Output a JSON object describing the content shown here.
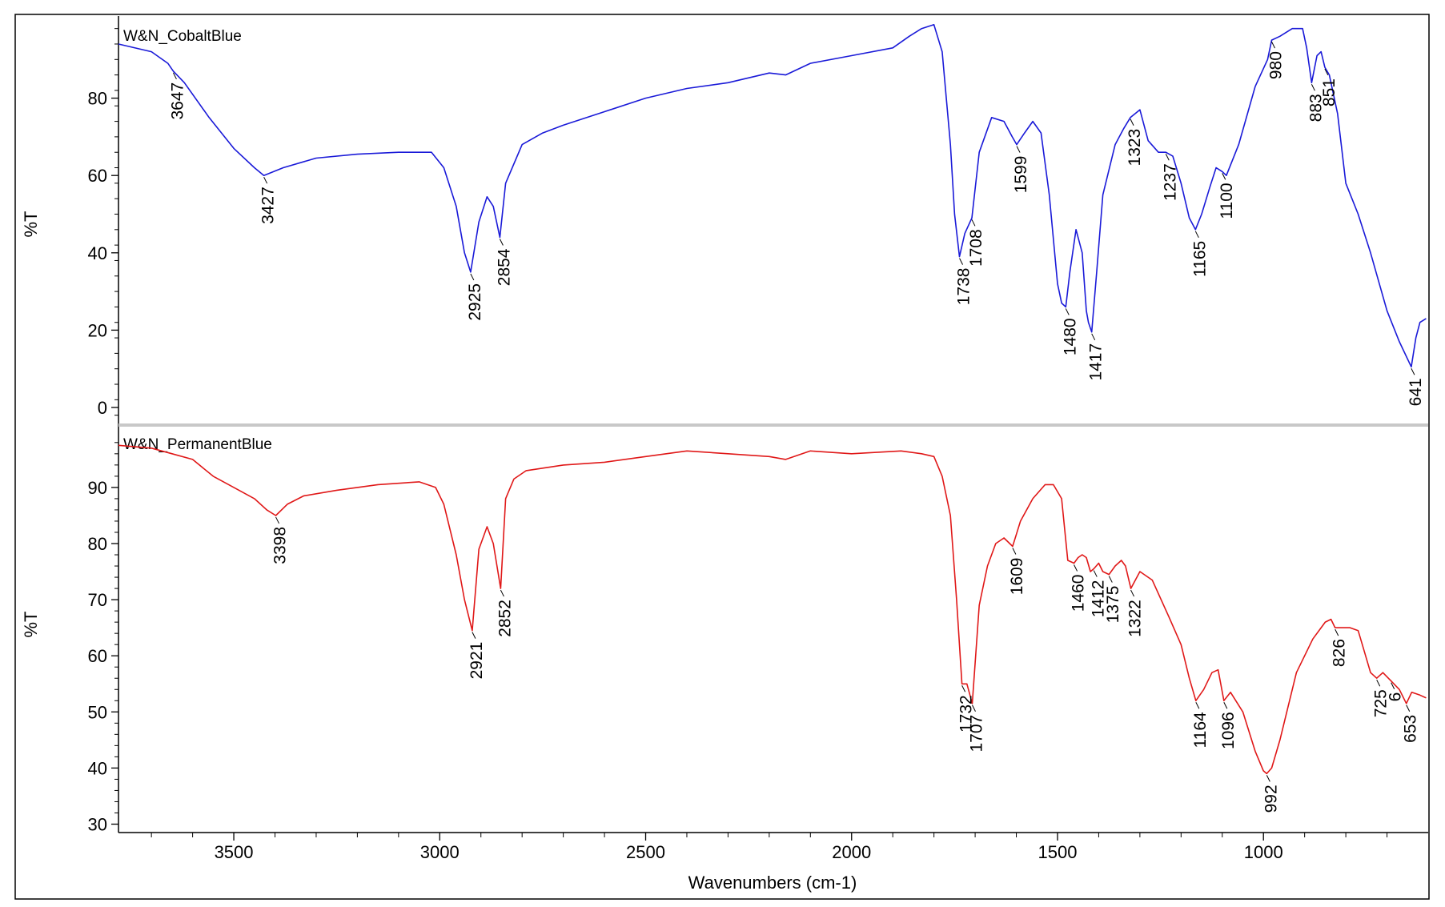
{
  "chart_data": {
    "type": "line",
    "xlabel": "Wavenumbers (cm-1)",
    "x_reversed": true,
    "xlim": [
      3780,
      600
    ],
    "x_ticks": [
      3500,
      3000,
      2500,
      2000,
      1500,
      1000
    ],
    "grid": false,
    "panels": [
      {
        "name": "W&N_CobaltBlue",
        "ylabel": "%T",
        "ylim": [
          -3,
          100
        ],
        "y_ticks": [
          0,
          20,
          40,
          60,
          80
        ],
        "color": "#1a1ad8",
        "x": [
          3780,
          3700,
          3660,
          3647,
          3620,
          3560,
          3500,
          3450,
          3427,
          3380,
          3300,
          3200,
          3100,
          3020,
          2990,
          2960,
          2940,
          2925,
          2905,
          2885,
          2870,
          2854,
          2840,
          2800,
          2750,
          2700,
          2600,
          2500,
          2400,
          2300,
          2200,
          2160,
          2100,
          2000,
          1900,
          1860,
          1830,
          1800,
          1780,
          1760,
          1750,
          1738,
          1725,
          1708,
          1690,
          1660,
          1630,
          1610,
          1599,
          1580,
          1560,
          1540,
          1520,
          1500,
          1490,
          1480,
          1470,
          1455,
          1440,
          1430,
          1425,
          1417,
          1405,
          1390,
          1360,
          1340,
          1323,
          1300,
          1280,
          1255,
          1237,
          1220,
          1200,
          1180,
          1165,
          1150,
          1130,
          1115,
          1100,
          1090,
          1060,
          1020,
          990,
          980,
          960,
          930,
          905,
          895,
          883,
          870,
          860,
          851,
          840,
          820,
          800,
          770,
          740,
          700,
          670,
          641,
          630,
          620,
          605
        ],
        "y": [
          94,
          92,
          89,
          87,
          84,
          75,
          67,
          62,
          60,
          62,
          64.5,
          65.5,
          66,
          66,
          62,
          52,
          40,
          35,
          48,
          54.5,
          52,
          44,
          58,
          68,
          71,
          73,
          76.5,
          80,
          82.5,
          84,
          86.5,
          86,
          89,
          91,
          93,
          96,
          98,
          99,
          92,
          68,
          50,
          39,
          45,
          49,
          66,
          75,
          74,
          70,
          68,
          71,
          74,
          71,
          55,
          32,
          27,
          26,
          35,
          46,
          40,
          25,
          22,
          19.5,
          35,
          55,
          68,
          72,
          75,
          77,
          69,
          66,
          66,
          65,
          58,
          49,
          46,
          50,
          57,
          62,
          61,
          60,
          68,
          83,
          90,
          95,
          96,
          98,
          98,
          93,
          84,
          91,
          92,
          88,
          86,
          76,
          58,
          50,
          40,
          25,
          17,
          10.5,
          18,
          22,
          23
        ],
        "peak_labels": [
          "3647",
          "3427",
          "2925",
          "2854",
          "1738",
          "1708",
          "1599",
          "1480",
          "1417",
          "1323",
          "1237",
          "1165",
          "1100",
          "980",
          "883",
          "851",
          "641"
        ]
      },
      {
        "name": "W&N_PermanentBlue",
        "ylabel": "%T",
        "ylim": [
          29,
          100
        ],
        "y_ticks": [
          30,
          40,
          50,
          60,
          70,
          80,
          90
        ],
        "color": "#e01818",
        "x": [
          3780,
          3700,
          3650,
          3600,
          3550,
          3500,
          3450,
          3420,
          3398,
          3370,
          3330,
          3250,
          3150,
          3050,
          3010,
          2990,
          2960,
          2940,
          2921,
          2905,
          2885,
          2870,
          2852,
          2840,
          2820,
          2790,
          2700,
          2600,
          2500,
          2400,
          2300,
          2200,
          2160,
          2100,
          2000,
          1880,
          1830,
          1800,
          1780,
          1760,
          1745,
          1732,
          1720,
          1707,
          1690,
          1670,
          1650,
          1630,
          1609,
          1590,
          1560,
          1530,
          1510,
          1490,
          1475,
          1460,
          1450,
          1440,
          1430,
          1420,
          1412,
          1400,
          1390,
          1375,
          1360,
          1345,
          1335,
          1322,
          1300,
          1270,
          1230,
          1200,
          1180,
          1164,
          1145,
          1125,
          1110,
          1096,
          1080,
          1050,
          1020,
          1000,
          992,
          980,
          960,
          920,
          880,
          850,
          836,
          826,
          810,
          790,
          770,
          760,
          740,
          725,
          710,
          690,
          670,
          653,
          640,
          620,
          605
        ],
        "y": [
          97.5,
          97,
          96,
          95,
          92,
          90,
          88,
          86,
          85,
          87,
          88.5,
          89.5,
          90.5,
          91,
          90,
          87,
          78,
          70,
          64.5,
          79,
          83,
          80,
          72,
          88,
          91.5,
          93,
          94,
          94.5,
          95.5,
          96.5,
          96,
          95.5,
          95,
          96.5,
          96,
          96.5,
          96,
          95.5,
          92,
          85,
          70,
          55,
          55,
          51.5,
          69,
          76,
          80,
          81,
          79.5,
          84,
          88,
          90.5,
          90.5,
          88,
          77,
          76.5,
          77.5,
          78,
          77.5,
          75,
          75.5,
          76.5,
          75,
          74.5,
          76,
          77,
          76,
          72,
          75,
          73.5,
          67,
          62,
          56,
          52,
          54,
          57,
          57.5,
          52,
          53.5,
          50,
          43,
          39.5,
          39,
          40,
          45,
          57,
          63,
          66,
          66.5,
          65,
          65,
          65,
          64.5,
          62,
          57,
          56,
          57,
          55.5,
          54,
          51.5,
          53.5,
          53,
          52.5
        ],
        "peak_labels": [
          "3398",
          "2921",
          "2852",
          "1732",
          "1707",
          "1609",
          "1460",
          "1412",
          "1375",
          "1322",
          "1164",
          "1096",
          "992",
          "826",
          "725",
          "6",
          "653"
        ]
      }
    ]
  }
}
